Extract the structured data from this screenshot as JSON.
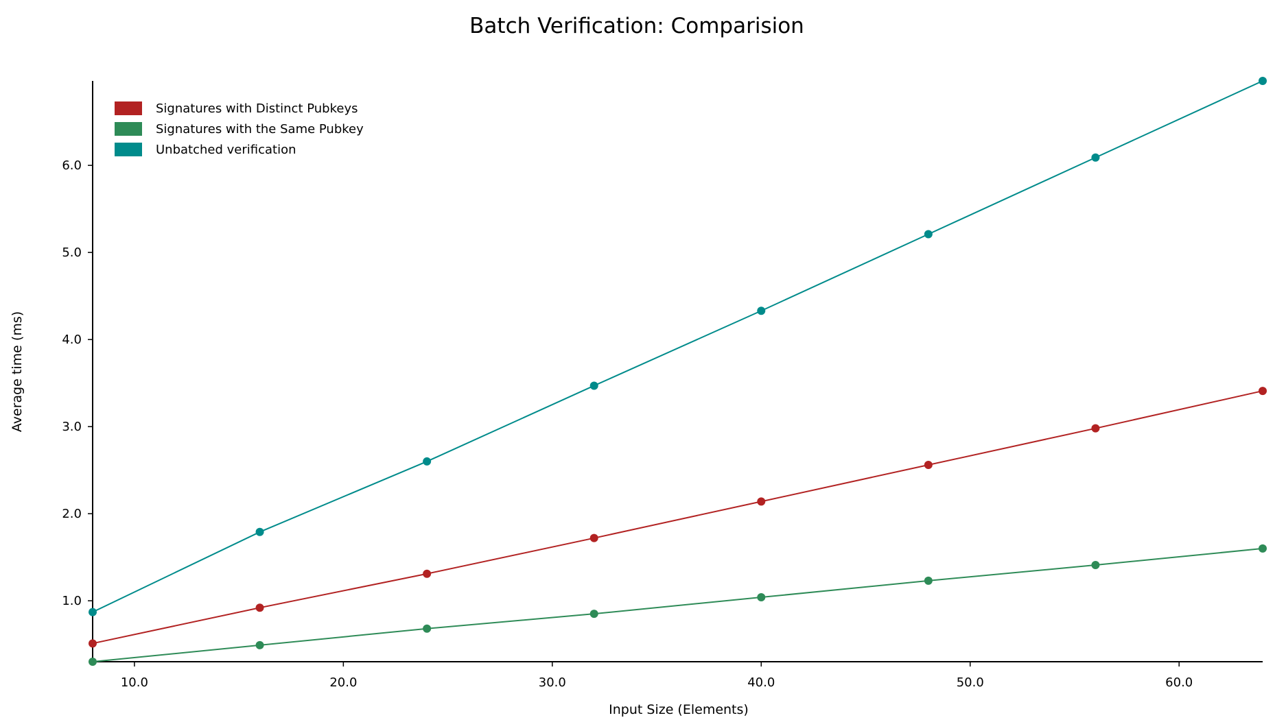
{
  "chart_data": {
    "type": "line",
    "title": "Batch Verification: Comparision",
    "xlabel": "Input Size (Elements)",
    "ylabel": "Average time (ms)",
    "x": [
      8,
      16,
      24,
      32,
      40,
      48,
      56,
      64
    ],
    "xlim": [
      8,
      64
    ],
    "ylim": [
      0.3,
      6.97
    ],
    "xticks": [
      10,
      20,
      30,
      40,
      50,
      60
    ],
    "xtick_labels": [
      "10.0",
      "20.0",
      "30.0",
      "40.0",
      "50.0",
      "60.0"
    ],
    "yticks": [
      1,
      2,
      3,
      4,
      5,
      6
    ],
    "ytick_labels": [
      "1.0",
      "2.0",
      "3.0",
      "4.0",
      "5.0",
      "6.0"
    ],
    "grid": false,
    "legend_position": "top-left",
    "series": [
      {
        "name": "Signatures with Distinct Pubkeys",
        "color": "#b22222",
        "values": [
          0.51,
          0.92,
          1.31,
          1.72,
          2.14,
          2.56,
          2.98,
          3.41
        ]
      },
      {
        "name": "Signatures with the Same Pubkey",
        "color": "#2e8b57",
        "values": [
          0.3,
          0.49,
          0.68,
          0.85,
          1.04,
          1.23,
          1.41,
          1.6
        ]
      },
      {
        "name": "Unbatched verification",
        "color": "#008b8b",
        "values": [
          0.87,
          1.79,
          2.6,
          3.47,
          4.33,
          5.21,
          6.09,
          6.97
        ]
      }
    ]
  }
}
